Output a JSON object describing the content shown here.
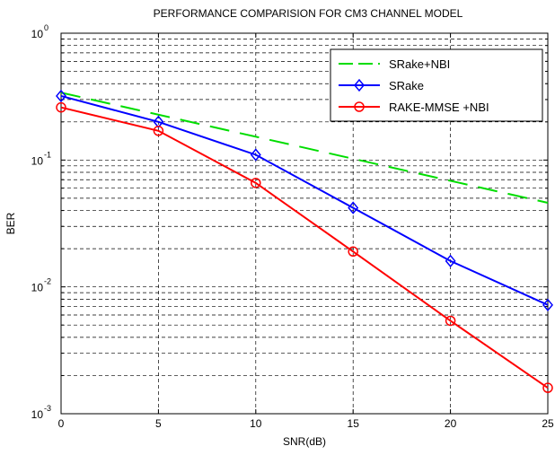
{
  "chart_data": {
    "type": "line",
    "title": "PERFORMANCE COMPARISION FOR CM3 CHANNEL MODEL",
    "xlabel": "SNR(dB)",
    "ylabel": "BER",
    "xlim": [
      0,
      25
    ],
    "ylim": [
      0.001,
      1
    ],
    "yscale": "log",
    "grid": true,
    "legend_position": "top-right",
    "x_ticks": [
      "0",
      "5",
      "10",
      "15",
      "20",
      "25"
    ],
    "y_ticks": [
      {
        "base": "10",
        "exp": "-3"
      },
      {
        "base": "10",
        "exp": "-2"
      },
      {
        "base": "10",
        "exp": "-1"
      },
      {
        "base": "10",
        "exp": "0"
      }
    ],
    "series": [
      {
        "name": "SRake+NBI",
        "color": "#00dd00",
        "line": "dashed",
        "marker": "none",
        "x": [
          0,
          25
        ],
        "y": [
          0.34,
          0.046
        ]
      },
      {
        "name": "SRake",
        "color": "#0000ff",
        "line": "solid",
        "marker": "diamond",
        "x": [
          0,
          5,
          10,
          15,
          20,
          25
        ],
        "y": [
          0.32,
          0.2,
          0.11,
          0.042,
          0.016,
          0.0072
        ]
      },
      {
        "name": "RAKE-MMSE +NBI",
        "color": "#ff0000",
        "line": "solid",
        "marker": "circle",
        "x": [
          0,
          5,
          10,
          15,
          20,
          25
        ],
        "y": [
          0.26,
          0.17,
          0.066,
          0.019,
          0.0054,
          0.0016
        ]
      }
    ]
  }
}
